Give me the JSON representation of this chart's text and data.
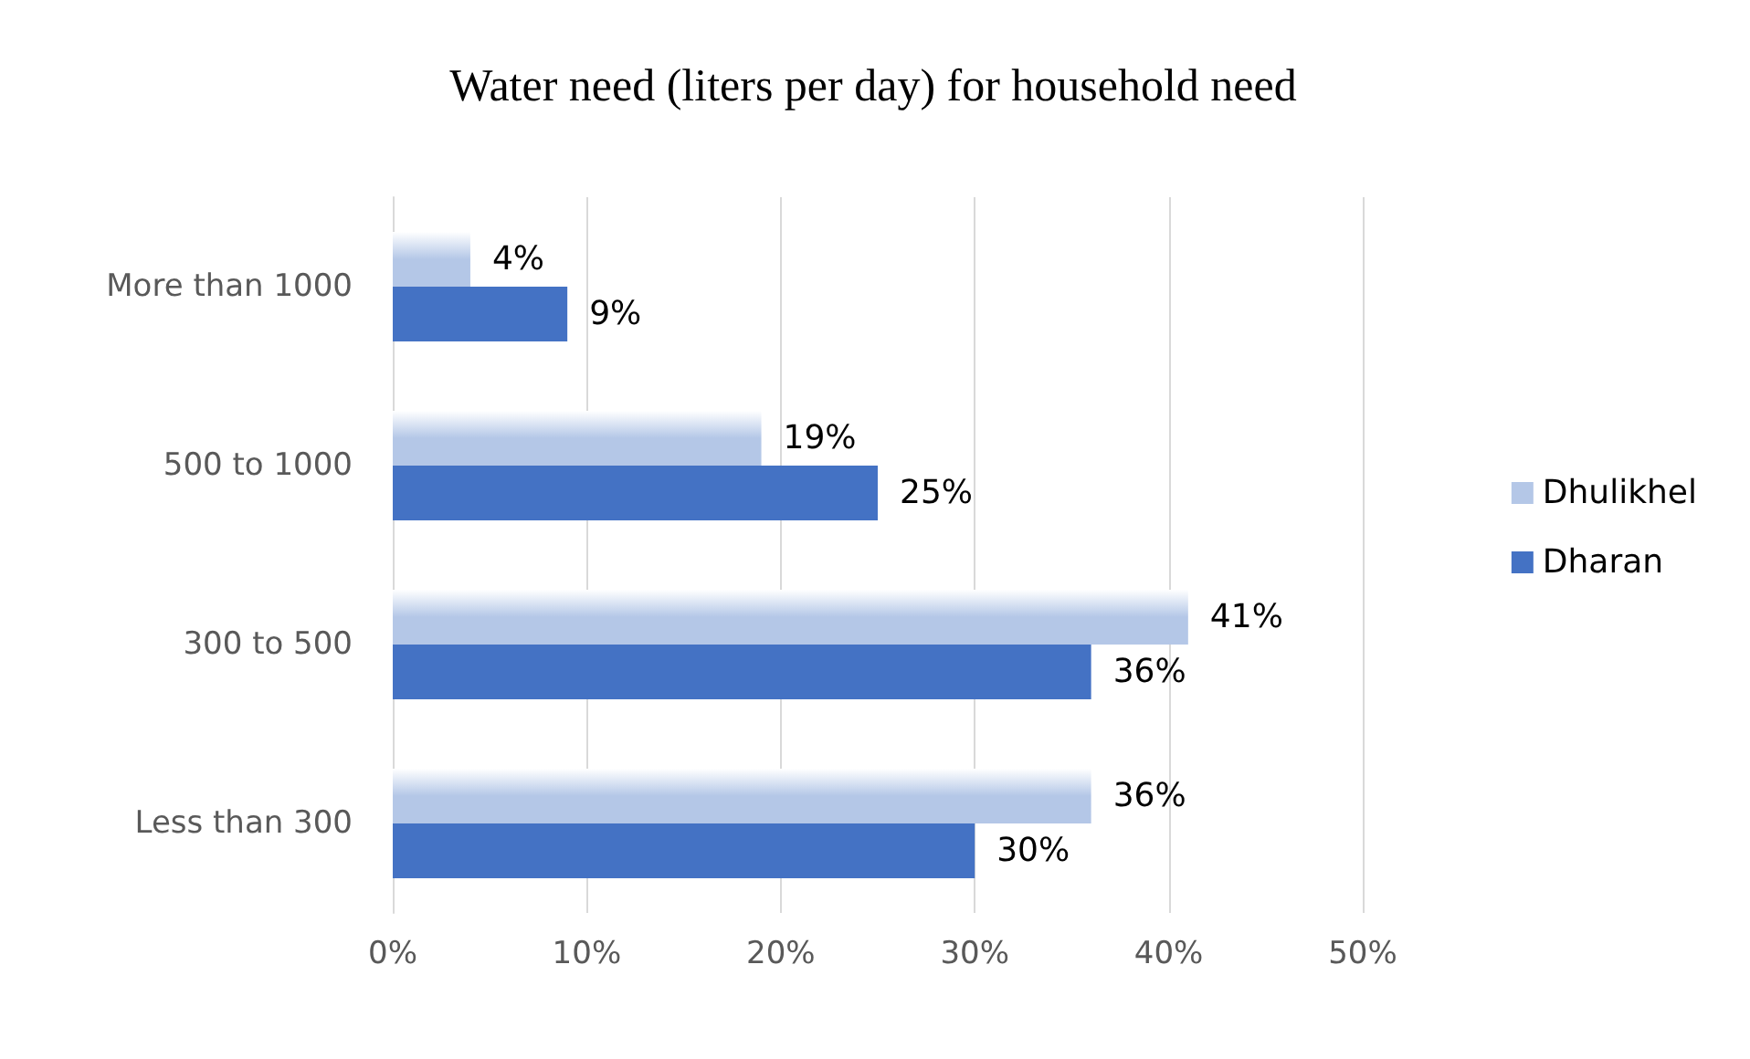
{
  "chart_data": {
    "type": "bar",
    "orientation": "horizontal",
    "title": "Water need (liters per day) for household need",
    "categories": [
      "More than 1000",
      "500 to 1000",
      "300 to 500",
      "Less than 300"
    ],
    "series": [
      {
        "name": "Dhulikhel",
        "color": "#b4c7e7",
        "values": [
          4,
          19,
          41,
          36
        ],
        "value_labels": [
          "4%",
          "19%",
          "41%",
          "36%"
        ]
      },
      {
        "name": "Dharan",
        "color": "#4472c4",
        "values": [
          9,
          25,
          36,
          30
        ],
        "value_labels": [
          "9%",
          "25%",
          "36%",
          "30%"
        ]
      }
    ],
    "xlim": [
      0,
      50
    ],
    "xticks": [
      {
        "value": 0,
        "label": "0%"
      },
      {
        "value": 10,
        "label": "10%"
      },
      {
        "value": 20,
        "label": "20%"
      },
      {
        "value": 30,
        "label": "30%"
      },
      {
        "value": 40,
        "label": "40%"
      },
      {
        "value": 50,
        "label": "50%"
      }
    ],
    "grid": "x",
    "legend": "right"
  }
}
